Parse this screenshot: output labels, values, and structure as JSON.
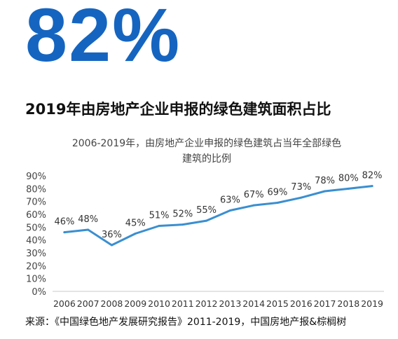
{
  "headline_value": "82%",
  "headline_title": "2019年由房地产企业申报的绿色建筑面积占比",
  "source_text": "来源：《中国绿色地产发展研究报告》2011-2019，中国房地产报&棕榈树",
  "colors": {
    "accent": "#1565c0",
    "line": "#3a8fd0"
  },
  "chart_data": {
    "type": "line",
    "title": "2006-2019年，由房地产企业申报的绿色建筑占当年全部绿色建筑的比例",
    "title_lines": [
      "2006-2019年，由房地产企业申报的绿色建筑占当年全部绿色",
      "建筑的比例"
    ],
    "xlabel": "",
    "ylabel": "",
    "categories": [
      "2006",
      "2007",
      "2008",
      "2009",
      "2010",
      "2011",
      "2012",
      "2013",
      "2014",
      "2015",
      "2016",
      "2017",
      "2018",
      "2019"
    ],
    "values": [
      46,
      48,
      36,
      45,
      51,
      52,
      55,
      63,
      67,
      69,
      73,
      78,
      80,
      82
    ],
    "data_labels": [
      "46%",
      "48%",
      "36%",
      "45%",
      "51%",
      "52%",
      "55%",
      "63%",
      "67%",
      "69%",
      "73%",
      "78%",
      "80%",
      "82%"
    ],
    "y_ticks": [
      "0%",
      "10%",
      "20%",
      "30%",
      "40%",
      "50%",
      "60%",
      "70%",
      "80%",
      "90%"
    ],
    "y_tick_values": [
      0,
      10,
      20,
      30,
      40,
      50,
      60,
      70,
      80,
      90
    ],
    "ylim": [
      0,
      90
    ],
    "grid": false,
    "legend": "none"
  }
}
